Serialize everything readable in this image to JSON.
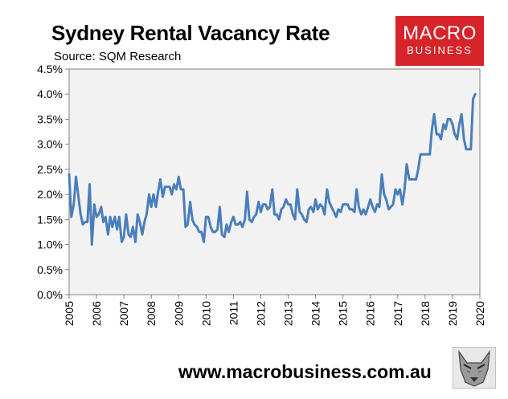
{
  "title": "Sydney Rental Vacancy Rate",
  "subtitle": "Source: SQM Research",
  "brand": {
    "line1": "MACRO",
    "line2": "BUSINESS",
    "color": "#d7232a"
  },
  "website": "www.macrobusiness.com.au",
  "colors": {
    "series": "#4a7ebb",
    "plot_background": "#f2f2f2",
    "axis": "#808080"
  },
  "chart_data": {
    "type": "line",
    "title": "Sydney Rental Vacancy Rate",
    "subtitle": "Source: SQM Research",
    "xlabel": "",
    "ylabel": "",
    "x_ticks": [
      "2005",
      "2006",
      "2007",
      "2008",
      "2009",
      "2010",
      "2011",
      "2012",
      "2013",
      "2014",
      "2015",
      "2016",
      "2017",
      "2018",
      "2019",
      "2020"
    ],
    "y_ticks": [
      "0.0%",
      "0.5%",
      "1.0%",
      "1.5%",
      "2.0%",
      "2.5%",
      "3.0%",
      "3.5%",
      "4.0%",
      "4.5%"
    ],
    "xlim": [
      2005,
      2020
    ],
    "ylim": [
      0,
      4.5
    ],
    "y_unit": "%",
    "grid": false,
    "legend": "none",
    "series": [
      {
        "values": [
          [
            2005.0,
            2.4
          ],
          [
            2005.08,
            1.55
          ],
          [
            2005.17,
            1.8
          ],
          [
            2005.25,
            2.35
          ],
          [
            2005.33,
            2.0
          ],
          [
            2005.42,
            1.6
          ],
          [
            2005.5,
            1.4
          ],
          [
            2005.58,
            1.45
          ],
          [
            2005.67,
            1.45
          ],
          [
            2005.75,
            2.2
          ],
          [
            2005.83,
            1.0
          ],
          [
            2005.92,
            1.8
          ],
          [
            2006.0,
            1.55
          ],
          [
            2006.08,
            1.6
          ],
          [
            2006.17,
            1.75
          ],
          [
            2006.25,
            1.45
          ],
          [
            2006.33,
            1.55
          ],
          [
            2006.42,
            1.2
          ],
          [
            2006.5,
            1.55
          ],
          [
            2006.58,
            1.35
          ],
          [
            2006.67,
            1.55
          ],
          [
            2006.75,
            1.3
          ],
          [
            2006.83,
            1.55
          ],
          [
            2006.92,
            1.05
          ],
          [
            2007.0,
            1.15
          ],
          [
            2007.08,
            1.6
          ],
          [
            2007.17,
            1.2
          ],
          [
            2007.25,
            1.15
          ],
          [
            2007.33,
            1.35
          ],
          [
            2007.42,
            1.05
          ],
          [
            2007.5,
            1.6
          ],
          [
            2007.58,
            1.45
          ],
          [
            2007.67,
            1.2
          ],
          [
            2007.75,
            1.45
          ],
          [
            2007.83,
            1.6
          ],
          [
            2007.92,
            2.0
          ],
          [
            2008.0,
            1.75
          ],
          [
            2008.08,
            2.0
          ],
          [
            2008.17,
            1.75
          ],
          [
            2008.25,
            2.05
          ],
          [
            2008.33,
            2.3
          ],
          [
            2008.42,
            1.95
          ],
          [
            2008.5,
            2.15
          ],
          [
            2008.58,
            2.15
          ],
          [
            2008.67,
            2.15
          ],
          [
            2008.75,
            2.0
          ],
          [
            2008.83,
            2.2
          ],
          [
            2008.92,
            2.1
          ],
          [
            2009.0,
            2.35
          ],
          [
            2009.08,
            2.1
          ],
          [
            2009.17,
            2.1
          ],
          [
            2009.25,
            1.35
          ],
          [
            2009.33,
            1.4
          ],
          [
            2009.42,
            1.85
          ],
          [
            2009.5,
            1.5
          ],
          [
            2009.58,
            1.4
          ],
          [
            2009.67,
            1.35
          ],
          [
            2009.75,
            1.25
          ],
          [
            2009.83,
            1.25
          ],
          [
            2009.92,
            1.05
          ],
          [
            2010.0,
            1.55
          ],
          [
            2010.08,
            1.55
          ],
          [
            2010.17,
            1.35
          ],
          [
            2010.25,
            1.25
          ],
          [
            2010.33,
            1.25
          ],
          [
            2010.42,
            1.3
          ],
          [
            2010.5,
            1.75
          ],
          [
            2010.58,
            1.2
          ],
          [
            2010.67,
            1.15
          ],
          [
            2010.75,
            1.4
          ],
          [
            2010.83,
            1.25
          ],
          [
            2010.92,
            1.45
          ],
          [
            2011.0,
            1.55
          ],
          [
            2011.08,
            1.4
          ],
          [
            2011.17,
            1.4
          ],
          [
            2011.25,
            1.45
          ],
          [
            2011.33,
            1.35
          ],
          [
            2011.42,
            1.5
          ],
          [
            2011.5,
            2.05
          ],
          [
            2011.58,
            1.5
          ],
          [
            2011.67,
            1.45
          ],
          [
            2011.75,
            1.55
          ],
          [
            2011.83,
            1.6
          ],
          [
            2011.92,
            1.85
          ],
          [
            2012.0,
            1.65
          ],
          [
            2012.08,
            1.8
          ],
          [
            2012.17,
            1.8
          ],
          [
            2012.25,
            1.7
          ],
          [
            2012.33,
            1.75
          ],
          [
            2012.42,
            2.1
          ],
          [
            2012.5,
            1.6
          ],
          [
            2012.58,
            1.6
          ],
          [
            2012.67,
            1.5
          ],
          [
            2012.75,
            1.7
          ],
          [
            2012.83,
            1.75
          ],
          [
            2012.92,
            1.9
          ],
          [
            2013.0,
            1.8
          ],
          [
            2013.08,
            1.8
          ],
          [
            2013.17,
            1.6
          ],
          [
            2013.25,
            1.5
          ],
          [
            2013.33,
            2.1
          ],
          [
            2013.42,
            1.65
          ],
          [
            2013.5,
            1.6
          ],
          [
            2013.58,
            1.5
          ],
          [
            2013.67,
            1.45
          ],
          [
            2013.75,
            1.7
          ],
          [
            2013.83,
            1.75
          ],
          [
            2013.92,
            1.65
          ],
          [
            2014.0,
            1.9
          ],
          [
            2014.08,
            1.7
          ],
          [
            2014.17,
            1.8
          ],
          [
            2014.25,
            1.75
          ],
          [
            2014.33,
            1.6
          ],
          [
            2014.42,
            2.1
          ],
          [
            2014.5,
            1.85
          ],
          [
            2014.58,
            1.75
          ],
          [
            2014.67,
            1.65
          ],
          [
            2014.75,
            1.55
          ],
          [
            2014.83,
            1.7
          ],
          [
            2014.92,
            1.65
          ],
          [
            2015.0,
            1.8
          ],
          [
            2015.08,
            1.8
          ],
          [
            2015.17,
            1.8
          ],
          [
            2015.25,
            1.7
          ],
          [
            2015.33,
            1.7
          ],
          [
            2015.42,
            1.65
          ],
          [
            2015.5,
            2.1
          ],
          [
            2015.58,
            1.75
          ],
          [
            2015.67,
            1.6
          ],
          [
            2015.75,
            1.7
          ],
          [
            2015.83,
            1.6
          ],
          [
            2015.92,
            1.75
          ],
          [
            2016.0,
            1.9
          ],
          [
            2016.08,
            1.75
          ],
          [
            2016.17,
            1.65
          ],
          [
            2016.25,
            1.8
          ],
          [
            2016.33,
            1.75
          ],
          [
            2016.42,
            2.4
          ],
          [
            2016.5,
            2.0
          ],
          [
            2016.58,
            1.9
          ],
          [
            2016.67,
            1.7
          ],
          [
            2016.75,
            1.75
          ],
          [
            2016.83,
            1.8
          ],
          [
            2016.92,
            2.1
          ],
          [
            2017.0,
            2.0
          ],
          [
            2017.08,
            2.1
          ],
          [
            2017.17,
            1.8
          ],
          [
            2017.25,
            2.1
          ],
          [
            2017.33,
            2.6
          ],
          [
            2017.42,
            2.3
          ],
          [
            2017.5,
            2.3
          ],
          [
            2017.58,
            2.3
          ],
          [
            2017.67,
            2.3
          ],
          [
            2017.75,
            2.5
          ],
          [
            2017.83,
            2.8
          ],
          [
            2017.92,
            2.8
          ],
          [
            2018.0,
            2.8
          ],
          [
            2018.08,
            2.8
          ],
          [
            2018.17,
            2.8
          ],
          [
            2018.25,
            3.3
          ],
          [
            2018.33,
            3.6
          ],
          [
            2018.42,
            3.2
          ],
          [
            2018.5,
            3.2
          ],
          [
            2018.58,
            3.1
          ],
          [
            2018.67,
            3.4
          ],
          [
            2018.75,
            3.3
          ],
          [
            2018.83,
            3.5
          ],
          [
            2018.92,
            3.5
          ],
          [
            2019.0,
            3.4
          ],
          [
            2019.08,
            3.2
          ],
          [
            2019.17,
            3.1
          ],
          [
            2019.25,
            3.4
          ],
          [
            2019.33,
            3.6
          ],
          [
            2019.42,
            3.1
          ],
          [
            2019.5,
            2.9
          ],
          [
            2019.58,
            2.9
          ],
          [
            2019.67,
            2.9
          ],
          [
            2019.75,
            3.9
          ],
          [
            2019.83,
            4.0
          ]
        ]
      }
    ]
  }
}
